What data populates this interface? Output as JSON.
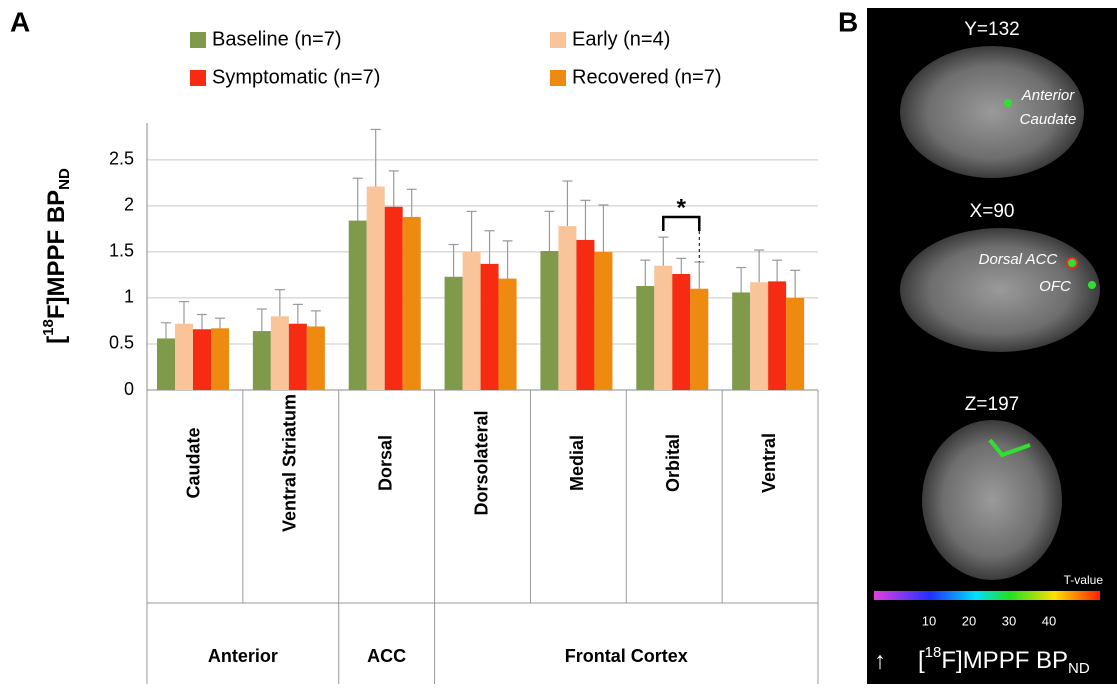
{
  "chart_data": {
    "type": "bar",
    "panel_label": "A",
    "ylabel": {
      "prefix": "[",
      "sup": "18",
      "main": "F]MPPF BP",
      "sub": "ND"
    },
    "categories": [
      "Caudate",
      "Ventral Striatum",
      "Dorsal",
      "Dorsolateral",
      "Medial",
      "Orbital",
      "Ventral"
    ],
    "groups": [
      "Anterior",
      "ACC",
      "Frontal Cortex"
    ],
    "series": [
      {
        "name": "Baseline (n=7)",
        "color": "#7f9a4a",
        "values": [
          0.56,
          0.64,
          1.84,
          1.23,
          1.51,
          1.13,
          1.06
        ],
        "errors": [
          0.17,
          0.24,
          0.46,
          0.35,
          0.43,
          0.28,
          0.27
        ]
      },
      {
        "name": "Early (n=4)",
        "color": "#f9c49a",
        "values": [
          0.72,
          0.8,
          2.21,
          1.5,
          1.78,
          1.35,
          1.17
        ],
        "errors": [
          0.24,
          0.29,
          0.62,
          0.44,
          0.49,
          0.31,
          0.35
        ]
      },
      {
        "name": "Symptomatic (n=7)",
        "color": "#f52b12",
        "values": [
          0.66,
          0.72,
          1.99,
          1.37,
          1.63,
          1.26,
          1.18
        ],
        "errors": [
          0.16,
          0.21,
          0.39,
          0.36,
          0.43,
          0.17,
          0.23
        ]
      },
      {
        "name": "Recovered (n=7)",
        "color": "#ee8a0f",
        "values": [
          0.67,
          0.69,
          1.88,
          1.21,
          1.5,
          1.1,
          1.0
        ],
        "errors": [
          0.11,
          0.17,
          0.3,
          0.41,
          0.51,
          0.29,
          0.3
        ]
      }
    ],
    "ylim": [
      0,
      2.9
    ],
    "yticks": [
      0,
      0.5,
      1,
      1.5,
      2,
      2.5
    ],
    "grid": true,
    "annotations": [
      "*"
    ]
  },
  "panel_b": {
    "panel_label": "B",
    "slices": [
      {
        "title": "Y=132",
        "labels": [
          "Anterior",
          "Caudate"
        ]
      },
      {
        "title": "X=90",
        "labels": [
          "Dorsal ACC",
          "OFC"
        ]
      },
      {
        "title": "Z=197",
        "labels": []
      }
    ],
    "colorbar": {
      "label": "T-value",
      "ticks": [
        10,
        20,
        30,
        40
      ]
    },
    "caption": {
      "arrow": "↑",
      "prefix": "[",
      "sup": "18",
      "main": "F]MPPF BP",
      "sub": "ND"
    }
  }
}
